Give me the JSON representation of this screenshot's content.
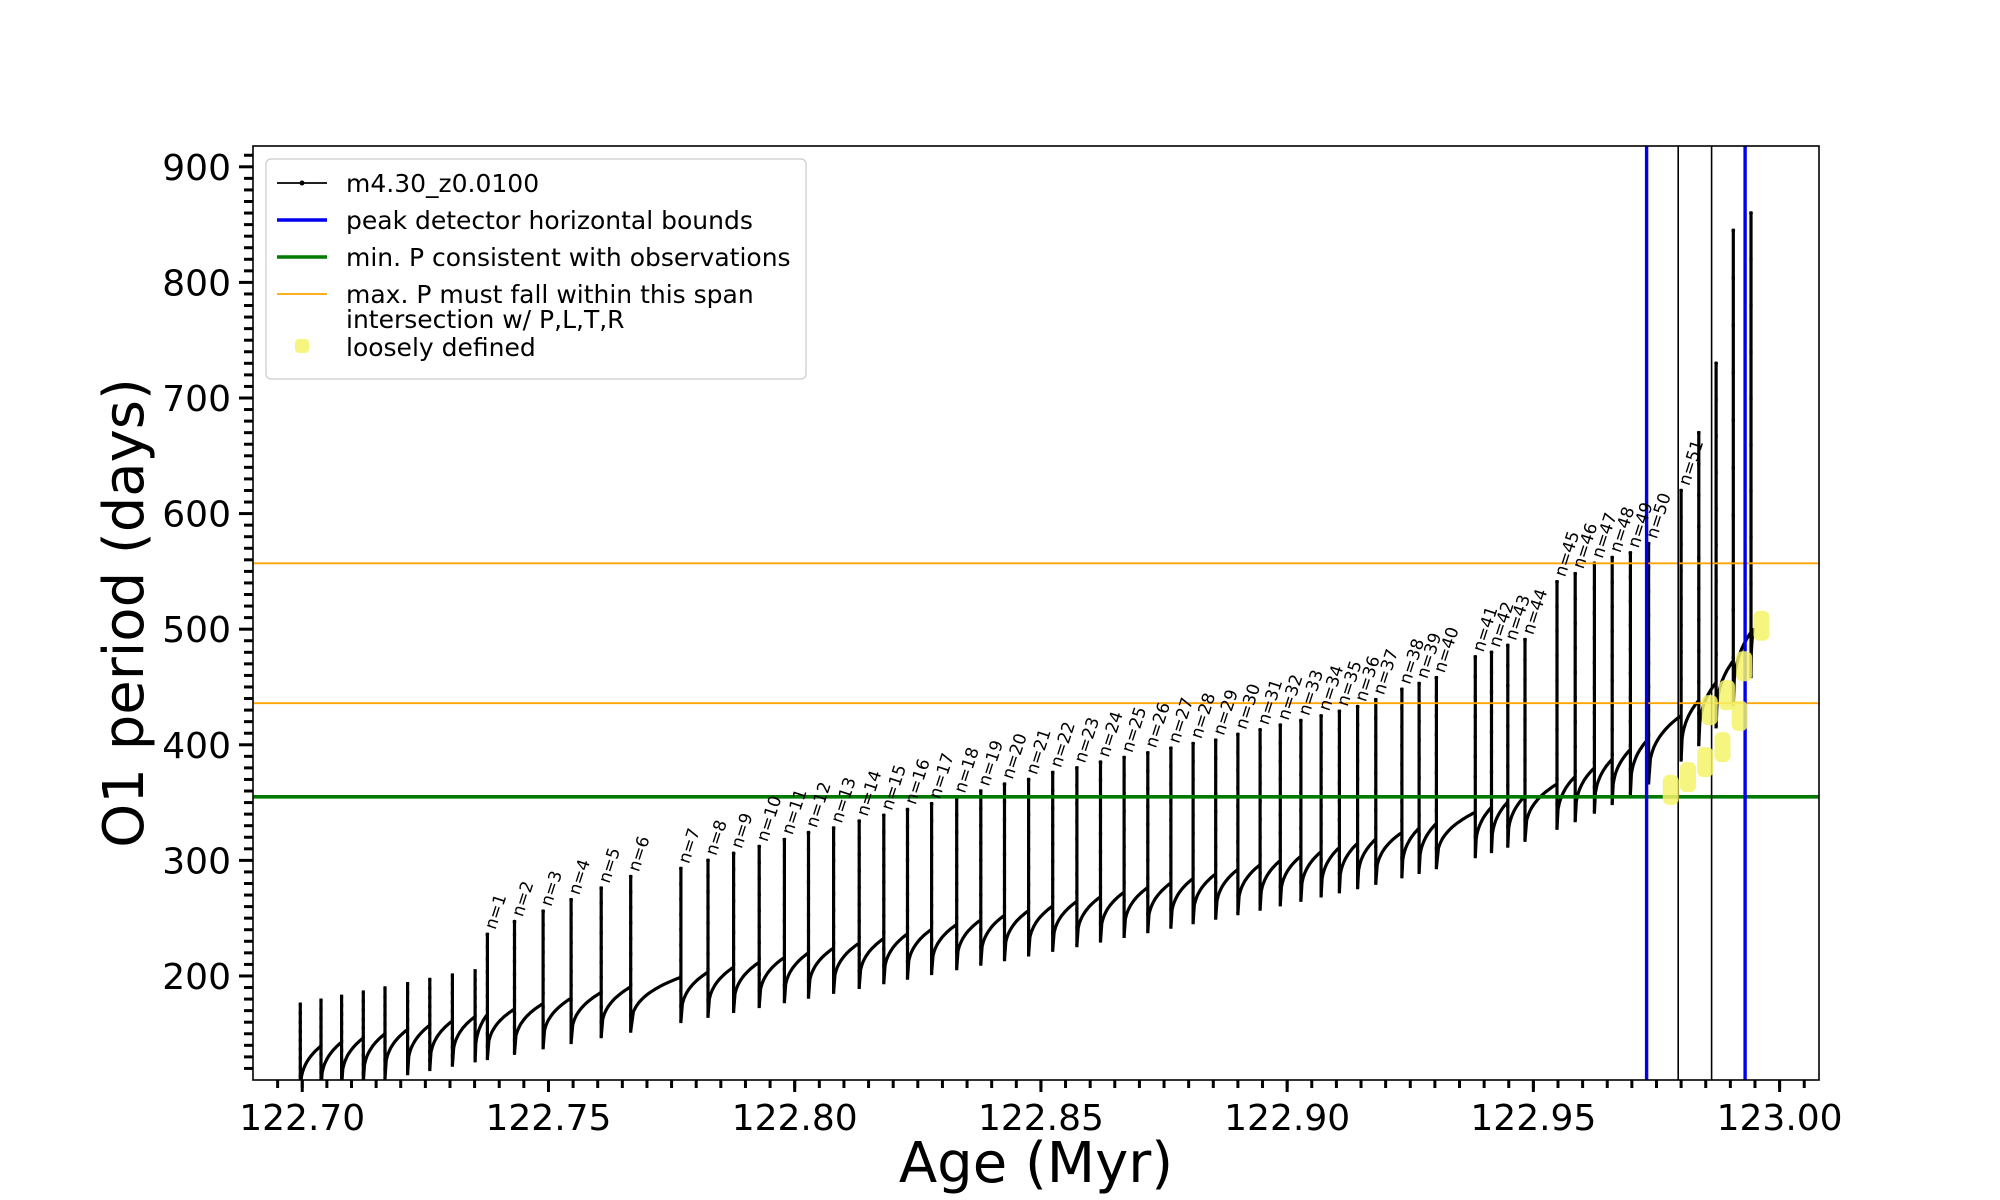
{
  "chart_data": {
    "type": "line",
    "xlabel": "Age (Myr)",
    "ylabel": "O1 period (days)",
    "xlim": [
      122.69,
      123.008
    ],
    "ylim": [
      110,
      918
    ],
    "xticks": [
      122.7,
      122.75,
      122.8,
      122.85,
      122.9,
      122.95,
      123.0
    ],
    "xtick_labels": [
      "122.70",
      "122.75",
      "122.80",
      "122.85",
      "122.90",
      "122.95",
      "123.00"
    ],
    "yticks": [
      200,
      300,
      400,
      500,
      600,
      700,
      800,
      900
    ],
    "ytick_labels": [
      "200",
      "300",
      "400",
      "500",
      "600",
      "700",
      "800",
      "900"
    ],
    "grid": false,
    "legend_position": "top-left",
    "legend": [
      {
        "label": "m4.30_z0.0100",
        "color": "#000000",
        "style": "line-marker"
      },
      {
        "label": "peak detector horizontal bounds",
        "color": "#0000ee",
        "style": "line"
      },
      {
        "label": "min. P consistent with observations",
        "color": "#007a00",
        "style": "line"
      },
      {
        "label": "max. P must fall within this span",
        "color": "#ffa500",
        "style": "line"
      },
      {
        "label": "intersection w/ P,L,T,R\nloosely defined",
        "color": "#f5f36a",
        "style": "marker"
      }
    ],
    "series": [
      {
        "name": "m4.30_z0.0100",
        "color": "#000000",
        "pulse_peaks": {
          "labels": [
            "n=1",
            "n=2",
            "n=3",
            "n=4",
            "n=5",
            "n=6",
            "n=7",
            "n=8",
            "n=9",
            "n=10",
            "n=11",
            "n=12",
            "n=13",
            "n=14",
            "n=15",
            "n=16",
            "n=17",
            "n=18",
            "n=19",
            "n=20",
            "n=21",
            "n=22",
            "n=23",
            "n=24",
            "n=25",
            "n=26",
            "n=27",
            "n=28",
            "n=29",
            "n=30",
            "n=31",
            "n=32",
            "n=33",
            "n=34",
            "n=35",
            "n=36",
            "n=37",
            "n=38",
            "n=39",
            "n=40",
            "n=41",
            "n=42",
            "n=43",
            "n=44",
            "n=45",
            "n=46",
            "n=47",
            "n=48",
            "n=49",
            "n=50",
            "n=51"
          ],
          "x": [
            122.7376,
            122.7431,
            122.7489,
            122.7546,
            122.7607,
            122.7667,
            122.7769,
            122.7824,
            122.7876,
            122.7928,
            122.7979,
            122.8028,
            122.8079,
            122.8131,
            122.8181,
            122.8229,
            122.8278,
            122.8329,
            122.8378,
            122.8426,
            122.8475,
            122.8524,
            122.8573,
            122.8621,
            122.8669,
            122.8717,
            122.8764,
            122.8809,
            122.8855,
            122.89,
            122.8945,
            122.8986,
            122.9028,
            122.9069,
            122.9106,
            122.9143,
            122.918,
            122.9233,
            122.9268,
            122.9303,
            122.9382,
            122.9415,
            122.9448,
            122.9483,
            122.9548,
            122.9585,
            122.9624,
            122.966,
            122.9697,
            122.9734,
            122.98
          ],
          "y": [
            236,
            247,
            256,
            266,
            276,
            286,
            293,
            300,
            306,
            312,
            318,
            324,
            328,
            334,
            339,
            344,
            349,
            354,
            360,
            366,
            370,
            376,
            380,
            385,
            389,
            393,
            397,
            401,
            404,
            409,
            413,
            417,
            421,
            425,
            429,
            433,
            439,
            448,
            453,
            458,
            476,
            480,
            486,
            491,
            541,
            548,
            557,
            562,
            566,
            574,
            620
          ]
        },
        "extra_peaks": {
          "x": [
            122.9836,
            122.9871,
            122.9906,
            122.9942
          ],
          "y": [
            670,
            730,
            845,
            860
          ]
        }
      }
    ],
    "vertical_lines": [
      {
        "x": 122.973,
        "color": "#0000ee",
        "role": "peak detector horizontal bounds"
      },
      {
        "x": 122.993,
        "color": "#0000ee",
        "role": "peak detector horizontal bounds"
      },
      {
        "x": 122.9794,
        "color": "#000000"
      },
      {
        "x": 122.9862,
        "color": "#000000"
      }
    ],
    "horizontal_lines": [
      {
        "y": 355,
        "color": "#007a00",
        "role": "min. P consistent with observations"
      },
      {
        "y": 436,
        "color": "#ffa500",
        "role": "max. P must fall within this span"
      },
      {
        "y": 557,
        "color": "#ffa500",
        "role": "max. P must fall within this span"
      }
    ],
    "intersections": {
      "color": "#f5f36a",
      "x": [
        122.9779,
        122.9814,
        122.9849,
        122.9884,
        122.9919,
        122.9858,
        122.9893,
        122.9928,
        122.9963
      ],
      "y": [
        361,
        372,
        385,
        398,
        425,
        430,
        443,
        468,
        503
      ]
    }
  }
}
